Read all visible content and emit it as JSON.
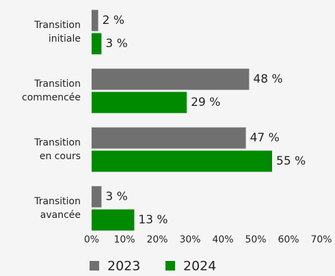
{
  "chart_data": {
    "type": "bar",
    "orientation": "horizontal",
    "categories": [
      "Transition\ninitiale",
      "Transition\ncommencée",
      "Transition\nen cours",
      "Transition\navancée"
    ],
    "series": [
      {
        "name": "2023",
        "color": "#707070",
        "values": [
          2,
          48,
          47,
          3
        ],
        "value_labels": [
          "2 %",
          "48 %",
          "47 %",
          "3 %"
        ]
      },
      {
        "name": "2024",
        "color": "#008a00",
        "values": [
          3,
          29,
          55,
          13
        ],
        "value_labels": [
          "3 %",
          "29 %",
          "55 %",
          "13 %"
        ]
      }
    ],
    "xlim": [
      0,
      70
    ],
    "xticks": [
      {
        "value": 0,
        "label": "0%"
      },
      {
        "value": 10,
        "label": "10%"
      },
      {
        "value": 20,
        "label": "20%"
      },
      {
        "value": 30,
        "label": "30%"
      },
      {
        "value": 40,
        "label": "40%"
      },
      {
        "value": 50,
        "label": "50%"
      },
      {
        "value": 60,
        "label": "60%"
      },
      {
        "value": 70,
        "label": "70%"
      }
    ],
    "legend": "bottom"
  }
}
